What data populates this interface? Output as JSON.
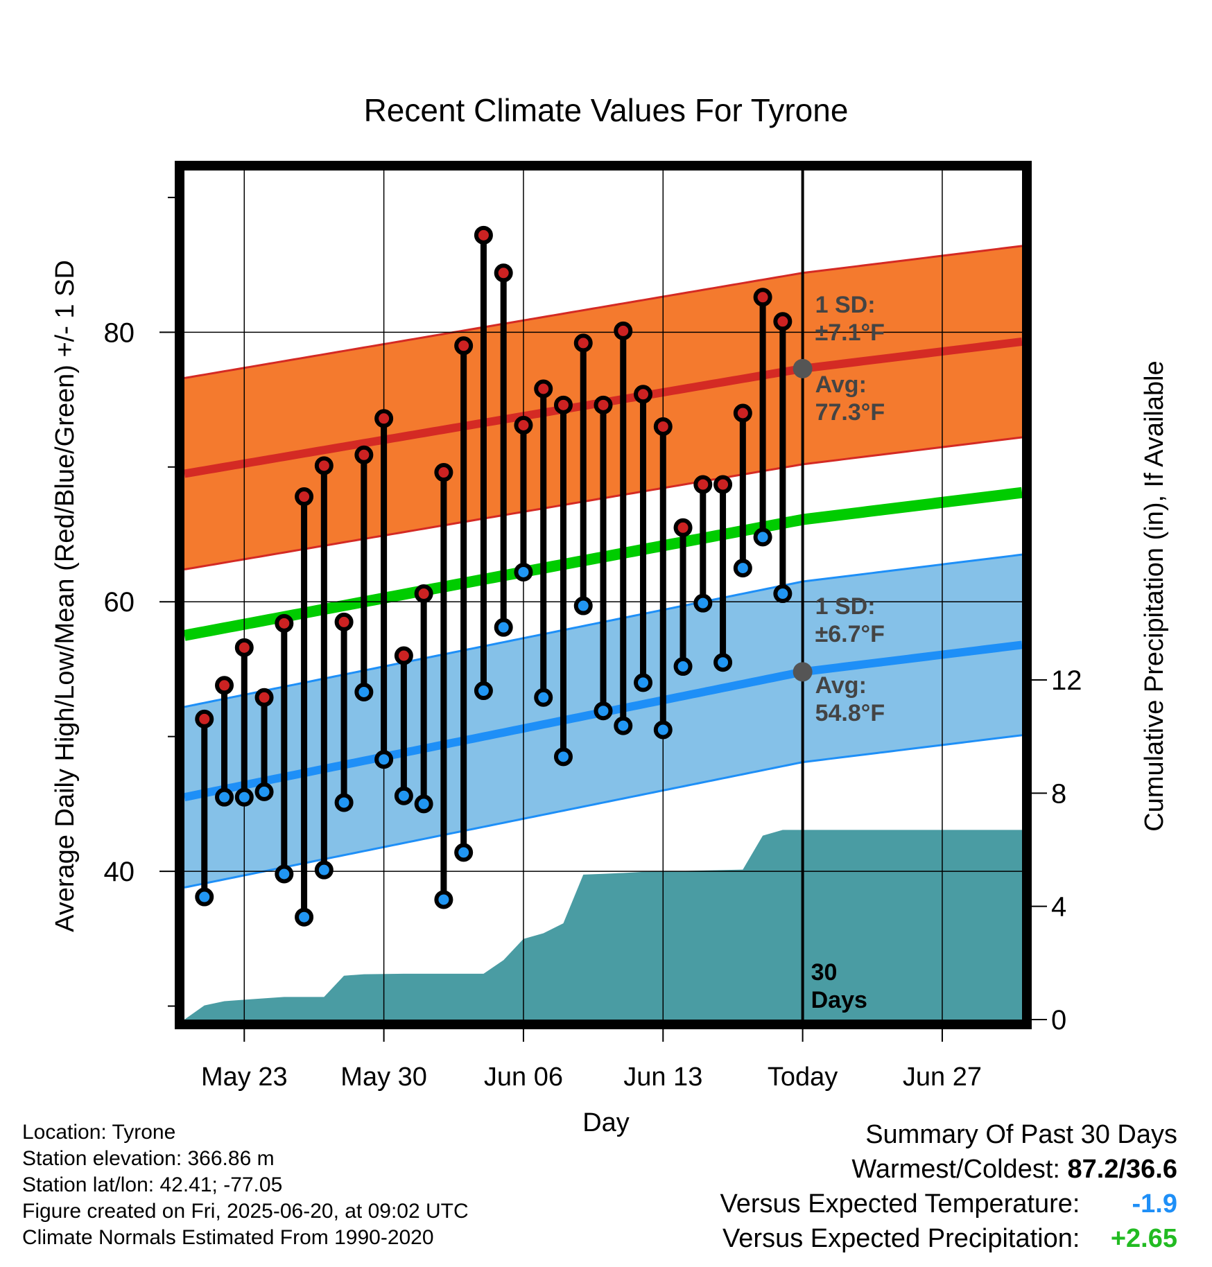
{
  "chart_data": {
    "type": "line",
    "title": "Recent Climate Values For Tyrone",
    "xlabel": "Day",
    "ylabel_left": "Average Daily High/Low/Mean (Red/Blue/Green) +/- 1 SD",
    "ylabel_right": "Cumulative Precipitation (in), If Available",
    "x_tick_labels": [
      "May 23",
      "May 30",
      "Jun 06",
      "Jun 13",
      "Today",
      "Jun 27"
    ],
    "x_range": [
      "2025-05-20",
      "2025-07-01"
    ],
    "y_left_range": [
      29,
      92
    ],
    "y_left_ticks": [
      40,
      60,
      80
    ],
    "y_right_range": [
      0,
      30
    ],
    "y_right_ticks": [
      0,
      4,
      8,
      12
    ],
    "grid": true,
    "today": "2025-06-20",
    "days_label": "30\nDays",
    "normals": {
      "high_avg": [
        {
          "date": "2025-05-20",
          "value": 69.5
        },
        {
          "date": "2025-06-20",
          "value": 77.3
        },
        {
          "date": "2025-07-01",
          "value": 79.3
        }
      ],
      "high_sd": 7.1,
      "low_avg": [
        {
          "date": "2025-05-20",
          "value": 45.5
        },
        {
          "date": "2025-06-20",
          "value": 54.8
        },
        {
          "date": "2025-07-01",
          "value": 56.8
        }
      ],
      "low_sd": 6.7,
      "mean_avg": [
        {
          "date": "2025-05-20",
          "value": 57.5
        },
        {
          "date": "2025-06-20",
          "value": 66.1
        },
        {
          "date": "2025-07-01",
          "value": 68.1
        }
      ]
    },
    "annotations": {
      "high_sd_label": "1 SD:\n±7.1°F",
      "high_avg_label": "Avg:\n77.3°F",
      "low_sd_label": "1 SD:\n±6.7°F",
      "low_avg_label": "Avg:\n54.8°F"
    },
    "daily": [
      {
        "date": "2025-05-21",
        "high": 51.3,
        "low": 38.1
      },
      {
        "date": "2025-05-22",
        "high": 53.8,
        "low": 45.5
      },
      {
        "date": "2025-05-23",
        "high": 56.6,
        "low": 45.5
      },
      {
        "date": "2025-05-24",
        "high": 52.9,
        "low": 45.9
      },
      {
        "date": "2025-05-25",
        "high": 58.4,
        "low": 39.8
      },
      {
        "date": "2025-05-26",
        "high": 67.8,
        "low": 36.6
      },
      {
        "date": "2025-05-27",
        "high": 70.1,
        "low": 40.1
      },
      {
        "date": "2025-05-28",
        "high": 58.5,
        "low": 45.1
      },
      {
        "date": "2025-05-29",
        "high": 70.9,
        "low": 53.3
      },
      {
        "date": "2025-05-30",
        "high": 73.6,
        "low": 48.3
      },
      {
        "date": "2025-05-31",
        "high": 56.0,
        "low": 45.6
      },
      {
        "date": "2025-06-01",
        "high": 60.6,
        "low": 45.0
      },
      {
        "date": "2025-06-02",
        "high": 69.6,
        "low": 37.9
      },
      {
        "date": "2025-06-03",
        "high": 79.0,
        "low": 41.4
      },
      {
        "date": "2025-06-04",
        "high": 87.2,
        "low": 53.4
      },
      {
        "date": "2025-06-05",
        "high": 84.4,
        "low": 58.1
      },
      {
        "date": "2025-06-06",
        "high": 73.1,
        "low": 62.2
      },
      {
        "date": "2025-06-07",
        "high": 75.8,
        "low": 52.9
      },
      {
        "date": "2025-06-08",
        "high": 74.6,
        "low": 48.5
      },
      {
        "date": "2025-06-09",
        "high": 79.2,
        "low": 59.7
      },
      {
        "date": "2025-06-10",
        "high": 74.6,
        "low": 51.9
      },
      {
        "date": "2025-06-11",
        "high": 80.1,
        "low": 50.8
      },
      {
        "date": "2025-06-12",
        "high": 75.4,
        "low": 54.0
      },
      {
        "date": "2025-06-13",
        "high": 73.0,
        "low": 50.5
      },
      {
        "date": "2025-06-14",
        "high": 65.5,
        "low": 55.2
      },
      {
        "date": "2025-06-15",
        "high": 68.7,
        "low": 59.9
      },
      {
        "date": "2025-06-16",
        "high": 68.7,
        "low": 55.5
      },
      {
        "date": "2025-06-17",
        "high": 74.0,
        "low": 62.5
      },
      {
        "date": "2025-06-18",
        "high": 82.6,
        "low": 64.8
      },
      {
        "date": "2025-06-19",
        "high": 80.8,
        "low": 60.6
      }
    ],
    "precip_cumulative": [
      {
        "date": "2025-05-20",
        "value": 0.0
      },
      {
        "date": "2025-05-21",
        "value": 0.5
      },
      {
        "date": "2025-05-22",
        "value": 0.65
      },
      {
        "date": "2025-05-23",
        "value": 0.7
      },
      {
        "date": "2025-05-24",
        "value": 0.75
      },
      {
        "date": "2025-05-25",
        "value": 0.8
      },
      {
        "date": "2025-05-27",
        "value": 0.8
      },
      {
        "date": "2025-05-28",
        "value": 1.55
      },
      {
        "date": "2025-05-29",
        "value": 1.6
      },
      {
        "date": "2025-05-31",
        "value": 1.62
      },
      {
        "date": "2025-06-04",
        "value": 1.62
      },
      {
        "date": "2025-06-05",
        "value": 2.1
      },
      {
        "date": "2025-06-06",
        "value": 2.85
      },
      {
        "date": "2025-06-07",
        "value": 3.05
      },
      {
        "date": "2025-06-08",
        "value": 3.4
      },
      {
        "date": "2025-06-09",
        "value": 5.12
      },
      {
        "date": "2025-06-10",
        "value": 5.15
      },
      {
        "date": "2025-06-11",
        "value": 5.18
      },
      {
        "date": "2025-06-12",
        "value": 5.22
      },
      {
        "date": "2025-06-17",
        "value": 5.3
      },
      {
        "date": "2025-06-18",
        "value": 6.5
      },
      {
        "date": "2025-06-19",
        "value": 6.7
      },
      {
        "date": "2025-07-01",
        "value": 6.7
      }
    ],
    "colors": {
      "high_band": "#f47a2e",
      "high_line": "#d42a24",
      "low_band": "#85c1e8",
      "low_line": "#1e8ff7",
      "mean_line": "#00cc00",
      "precip": "#4a9ca3",
      "high_dot": "#cc2222",
      "low_dot": "#2196f3",
      "annotation": "#444444"
    }
  },
  "footer": {
    "location": "Location: Tyrone",
    "elevation": "Station elevation: 366.86 m",
    "latlon": "Station lat/lon: 42.41; -77.05",
    "created": "Figure created on Fri, 2025-06-20, at 09:02 UTC",
    "normals": "Climate Normals Estimated From 1990-2020"
  },
  "summary": {
    "title": "Summary Of Past 30 Days",
    "warm_cold_label": "Warmest/Coldest:",
    "warm_cold_value": "87.2/36.6",
    "temp_label": "Versus Expected Temperature:",
    "temp_value": "-1.9",
    "temp_color": "#1e8ff7",
    "precip_label": "Versus Expected Precipitation:",
    "precip_value": "+2.65",
    "precip_color": "#22bb22"
  }
}
